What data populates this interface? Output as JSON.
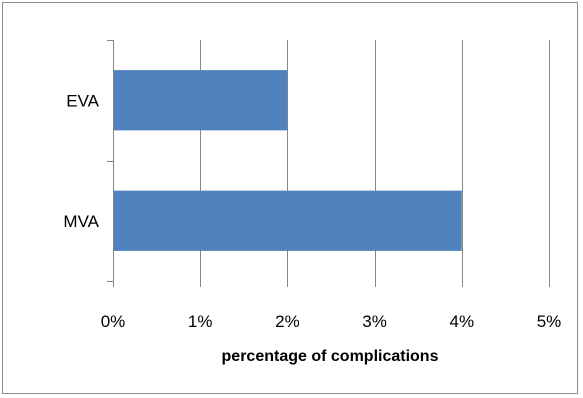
{
  "chart_data": {
    "type": "bar",
    "orientation": "horizontal",
    "categories": [
      "EVA",
      "MVA"
    ],
    "values": [
      0.02,
      0.04
    ],
    "xlabel": "percentage of complications",
    "ylabel": "",
    "xlim": [
      0,
      0.05
    ],
    "xticks": [
      "0%",
      "1%",
      "2%",
      "3%",
      "4%",
      "5%"
    ],
    "grid": "vertical",
    "legend": "none",
    "bar_color": "#4F81BD",
    "gridline_color": "#868686",
    "frame_color": "#8c8c8c"
  }
}
